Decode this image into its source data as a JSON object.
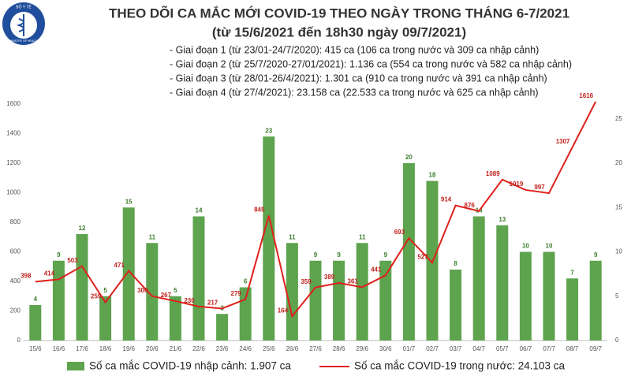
{
  "chart_data": {
    "type": "bar",
    "logo_text": "BỘ Y TẾ",
    "logo_subtext": "MINISTRY OF HEALTH",
    "title": "THEO DÕI CA MẮC MỚI COVID-19 THEO NGÀY TRONG THÁNG 6-7/2021",
    "subtitle": "(từ 15/6/2021 đến 18h30 ngày 09/7/2021)",
    "annotations": [
      "- Giai đoạn 1 (từ 23/01-24/7/2020): 415 ca (106 ca trong nước và 309 ca nhập cảnh)",
      "- Giai đoạn 2 (từ 25/7/2020-27/01/2021): 1.136 ca (554 ca trong nước và 582 ca nhập cảnh)",
      "- Giai đoạn 3 (từ 28/01-26/4/2021): 1.301 ca (910 ca trong nước và 391 ca nhập cảnh)",
      "- Giai đoạn 4 (từ 27/4/2021): 23.158 ca (22.533 ca trong nước và 625 ca nhập cảnh)"
    ],
    "categories": [
      "15/6",
      "16/6",
      "17/6",
      "18/6",
      "19/6",
      "20/6",
      "21/6",
      "22/6",
      "23/6",
      "24/6",
      "25/6",
      "26/6",
      "27/6",
      "28/6",
      "29/6",
      "30/6",
      "01/7",
      "02/7",
      "03/7",
      "04/7",
      "05/7",
      "06/7",
      "07/7",
      "08/7",
      "09/7"
    ],
    "series": [
      {
        "name": "Số ca mắc COVID-19 nhập cảnh: 1.907 ca",
        "type": "bar",
        "axis": "y2",
        "color": "#5ea34e",
        "label_color": "#3c7d2e",
        "values": [
          4,
          9,
          12,
          5,
          15,
          11,
          5,
          14,
          3,
          6,
          23,
          11,
          9,
          9,
          11,
          9,
          20,
          18,
          8,
          14,
          13,
          10,
          10,
          7,
          9
        ]
      },
      {
        "name": "Số ca mắc COVID-19 trong nước: 24.103 ca",
        "type": "line",
        "color": "#e0201b",
        "label_color": "#c0201b",
        "values": [
          398,
          414,
          503,
          259,
          471,
          300,
          267,
          230,
          217,
          279,
          845,
          164,
          359,
          389,
          361,
          441,
          693,
          527,
          914,
          876,
          1089,
          1019,
          997,
          1307,
          1616
        ]
      }
    ],
    "ylim": [
      0,
      1600
    ],
    "yticks": [
      0,
      200,
      400,
      600,
      800,
      1000,
      1200,
      1400,
      1600
    ],
    "y2lim": [
      0,
      26.6667
    ],
    "y2ticks": [
      0,
      5,
      10,
      15,
      20,
      25
    ],
    "grid": false
  }
}
